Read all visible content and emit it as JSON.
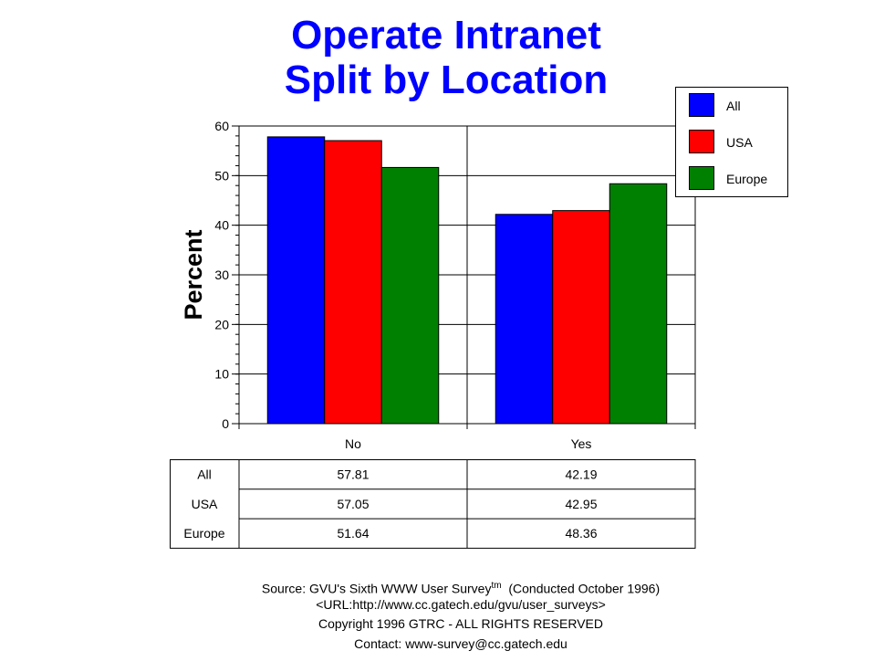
{
  "chart_data": {
    "type": "bar",
    "title": [
      "Operate Intranet",
      "Split by Location"
    ],
    "ylabel": "Percent",
    "xlabel": "",
    "ylim": [
      0,
      60
    ],
    "yticks": [
      0,
      10,
      20,
      30,
      40,
      50,
      60
    ],
    "grid": true,
    "legend_position": "top-right",
    "categories": [
      "No",
      "Yes"
    ],
    "series": [
      {
        "name": "All",
        "color": "#0000ff",
        "values": [
          57.81,
          42.19
        ]
      },
      {
        "name": "USA",
        "color": "#ff0000",
        "values": [
          57.05,
          42.95
        ]
      },
      {
        "name": "Europe",
        "color": "#008000",
        "values": [
          51.64,
          48.36
        ]
      }
    ],
    "table": {
      "rows": [
        {
          "label": "All",
          "values": [
            "57.81",
            "42.19"
          ]
        },
        {
          "label": "USA",
          "values": [
            "57.05",
            "42.95"
          ]
        },
        {
          "label": "Europe",
          "values": [
            "51.64",
            "48.36"
          ]
        }
      ]
    }
  },
  "footer": {
    "source_prefix": "Source: GVU's Sixth WWW User Survey",
    "source_tm": "tm",
    "source_suffix": "  (Conducted October 1996)",
    "url": "<URL:http://www.cc.gatech.edu/gvu/user_surveys>",
    "copyright": "Copyright 1996 GTRC -  ALL RIGHTS RESERVED",
    "contact": "Contact: www-survey@cc.gatech.edu"
  }
}
